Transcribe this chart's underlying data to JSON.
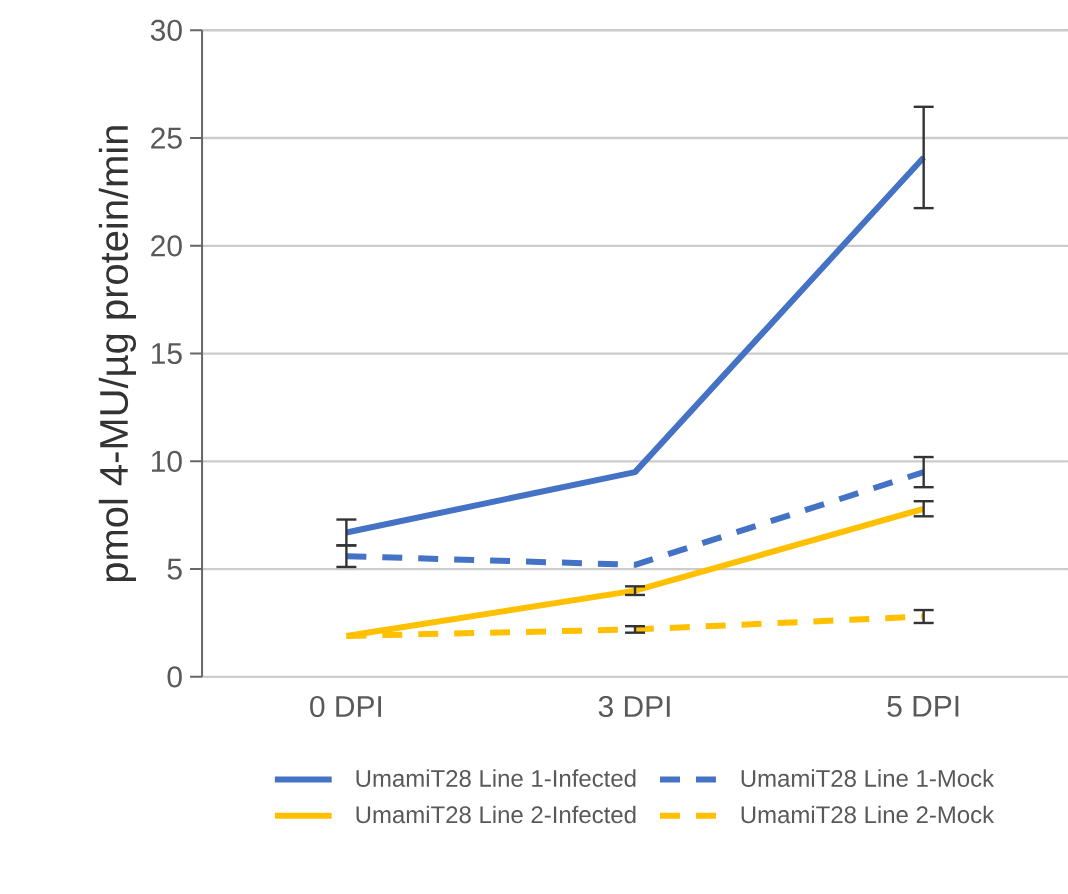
{
  "chart_data": {
    "type": "line",
    "ylabel": "pmol 4-MU/µg protein/min",
    "categories": [
      "0 DPI",
      "3 DPI",
      "5 DPI"
    ],
    "ylim": [
      0,
      30
    ],
    "yticks": [
      0,
      5,
      10,
      15,
      20,
      25,
      30
    ],
    "grid": "y",
    "legend": "bottom",
    "marker": "none",
    "series": [
      {
        "name": "UmamiT28 Line 1-Infected",
        "color": "#4472c4",
        "line_style": "solid",
        "values": [
          6.7,
          9.5,
          24.1
        ],
        "errors": [
          0.6,
          null,
          2.35
        ]
      },
      {
        "name": "UmamiT28 Line 1-Mock",
        "color": "#4472c4",
        "line_style": "dashed",
        "values": [
          5.6,
          5.2,
          9.5
        ],
        "errors": [
          0.5,
          null,
          0.7
        ]
      },
      {
        "name": "UmamiT28 Line 2-Infected",
        "color": "#ffc000",
        "line_style": "solid",
        "values": [
          1.9,
          4.0,
          7.8
        ],
        "errors": [
          null,
          0.2,
          0.35
        ]
      },
      {
        "name": "UmamiT28 Line 2-Mock",
        "color": "#ffc000",
        "line_style": "dashed",
        "values": [
          1.9,
          2.2,
          2.8
        ],
        "errors": [
          null,
          0.15,
          0.3
        ]
      }
    ]
  }
}
